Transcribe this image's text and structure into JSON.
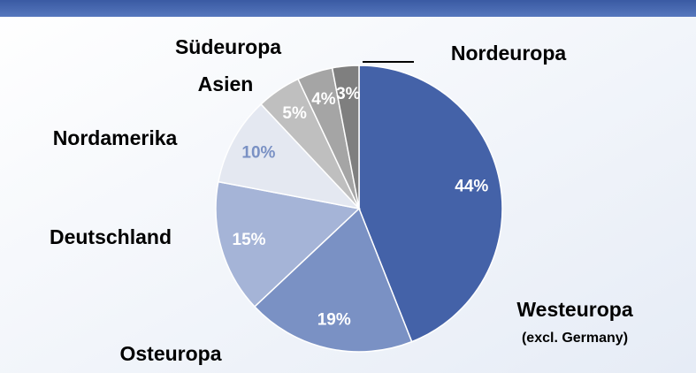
{
  "chart_data": {
    "type": "pie",
    "categories": [
      "Westeuropa",
      "Osteuropa",
      "Deutschland",
      "Nordamerika",
      "Asien",
      "Südeuropa",
      "Nordeuropa"
    ],
    "values": [
      44,
      19,
      15,
      10,
      5,
      4,
      3
    ],
    "value_labels": [
      "44%",
      "19%",
      "15%",
      "10%",
      "5%",
      "4%",
      "3%"
    ],
    "colors": [
      "#4462a8",
      "#7a91c4",
      "#a5b4d7",
      "#e4e8f1",
      "#bfbfbf",
      "#a5a5a5",
      "#7f7f7f"
    ],
    "annotations": [
      "(excl. Germany)"
    ]
  }
}
